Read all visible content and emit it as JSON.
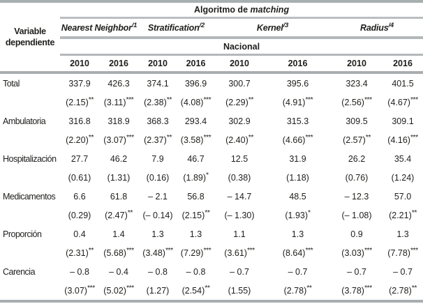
{
  "table": {
    "corner_label": "Variable dependiente",
    "title_prefix": "Algoritmo de",
    "title_italic": "matching",
    "region_label": "Nacional",
    "algorithms": [
      {
        "name": "Nearest Neighbor",
        "sup": "/1"
      },
      {
        "name": "Stratification",
        "sup": "/2"
      },
      {
        "name": "Kernel",
        "sup": "/3"
      },
      {
        "name": "Radius",
        "sup": "/4"
      }
    ],
    "years": [
      "2010",
      "2016",
      "2010",
      "2016",
      "2010",
      "2016",
      "2010",
      "2016"
    ],
    "rows": [
      {
        "label": "Total",
        "values": [
          "337.9",
          "426.3",
          "374.1",
          "396.9",
          "300.7",
          "395.6",
          "323.4",
          "401.5"
        ],
        "se": [
          {
            "v": "(2.15)",
            "s": "**"
          },
          {
            "v": "(3.11)",
            "s": "***"
          },
          {
            "v": "(2.38)",
            "s": "**"
          },
          {
            "v": "(4.08)",
            "s": "***"
          },
          {
            "v": "(2.29)",
            "s": "**"
          },
          {
            "v": "(4.91)",
            "s": "***"
          },
          {
            "v": "(2.56)",
            "s": "***"
          },
          {
            "v": "(4.67)",
            "s": "***"
          }
        ]
      },
      {
        "label": "Ambulatoria",
        "values": [
          "316.8",
          "318.9",
          "368.3",
          "293.4",
          "302.9",
          "315.3",
          "309.5",
          "309.1"
        ],
        "se": [
          {
            "v": "(2.20)",
            "s": "**"
          },
          {
            "v": "(3.07)",
            "s": "***"
          },
          {
            "v": "(2.37)",
            "s": "**"
          },
          {
            "v": "(3.58)",
            "s": "***"
          },
          {
            "v": "(2.40)",
            "s": "**"
          },
          {
            "v": "(4.66)",
            "s": "***"
          },
          {
            "v": "(2.57)",
            "s": "**"
          },
          {
            "v": "(4.16)",
            "s": "***"
          }
        ]
      },
      {
        "label": "Hospitalización",
        "values": [
          "27.7",
          "46.2",
          "7.9",
          "46.7",
          "12.5",
          "31.9",
          "26.2",
          "35.4"
        ],
        "se": [
          {
            "v": "(0.61)",
            "s": ""
          },
          {
            "v": "(1.31)",
            "s": ""
          },
          {
            "v": "(0.16)",
            "s": ""
          },
          {
            "v": "(1.89)",
            "s": "*"
          },
          {
            "v": "(0.38)",
            "s": ""
          },
          {
            "v": "(1.18)",
            "s": ""
          },
          {
            "v": "(0.76)",
            "s": ""
          },
          {
            "v": "(1.24)",
            "s": ""
          }
        ]
      },
      {
        "label": "Medicamentos",
        "values": [
          "6.6",
          "61.8",
          "– 2.1",
          "56.8",
          "– 14.7",
          "48.5",
          "– 12.3",
          "57.0"
        ],
        "se": [
          {
            "v": "(0.29)",
            "s": ""
          },
          {
            "v": "(2.47)",
            "s": "**"
          },
          {
            "v": "(– 0.14)",
            "s": ""
          },
          {
            "v": "(2.15)",
            "s": "**"
          },
          {
            "v": "(– 1.30)",
            "s": ""
          },
          {
            "v": "(1.93)",
            "s": "*"
          },
          {
            "v": "(– 1.08)",
            "s": ""
          },
          {
            "v": "(2.21)",
            "s": "**"
          }
        ]
      },
      {
        "label": "Proporción",
        "values": [
          "0.4",
          "1.4",
          "1.3",
          "1.3",
          "1.1",
          "1.3",
          "0.9",
          "1.3"
        ],
        "se": [
          {
            "v": "(2.31)",
            "s": "**"
          },
          {
            "v": "(5.68)",
            "s": "***"
          },
          {
            "v": "(3.48)",
            "s": "***"
          },
          {
            "v": "(7.29)",
            "s": "***"
          },
          {
            "v": "(3.61)",
            "s": "***"
          },
          {
            "v": "(8.64)",
            "s": "***"
          },
          {
            "v": "(3.03)",
            "s": "***"
          },
          {
            "v": "(7.78)",
            "s": "***"
          }
        ]
      },
      {
        "label": "Carencia",
        "values": [
          "– 0.8",
          "– 0.4",
          "– 0.8",
          "– 0.8",
          "– 0.7",
          "– 0.7",
          "– 0.7",
          "– 0.7"
        ],
        "se": [
          {
            "v": "(3.07)",
            "s": "***"
          },
          {
            "v": "(5.02)",
            "s": "***"
          },
          {
            "v": "(1.27)",
            "s": ""
          },
          {
            "v": "(2.54)",
            "s": "**"
          },
          {
            "v": "(1.55)",
            "s": ""
          },
          {
            "v": "(2.78)",
            "s": "**"
          },
          {
            "v": "(3.78)",
            "s": "***"
          },
          {
            "v": "(2.78)",
            "s": "**"
          }
        ]
      }
    ]
  }
}
